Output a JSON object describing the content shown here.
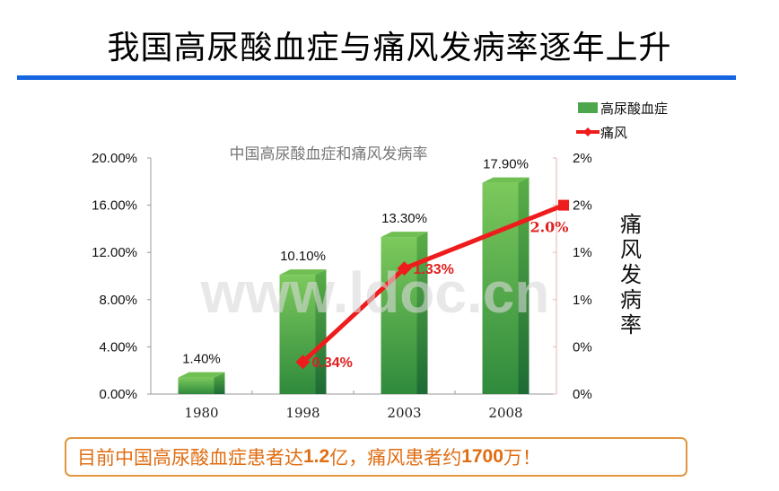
{
  "slide": {
    "title": "我国高尿酸血症与痛风发病率逐年上升",
    "accent_rule_color": "#1565e0",
    "callout": {
      "parts": [
        "目前中国高尿酸血症患者达",
        "1.2",
        "亿，痛风患者约",
        "1700",
        "万！"
      ],
      "border_color": "#e3963f",
      "text_color": "#e06d12"
    },
    "watermark": "www.ldoc.cn"
  },
  "chart_data": {
    "type": "bar+line",
    "title": "中国高尿酸血症和痛风发病率",
    "categories": [
      "1980",
      "1998",
      "2003",
      "2008"
    ],
    "series": [
      {
        "name": "高尿酸血症",
        "type": "bar",
        "axis": "left",
        "color": "#5cb947",
        "values": [
          1.4,
          10.1,
          13.3,
          17.9
        ],
        "labels": [
          "1.40%",
          "10.10%",
          "13.30%",
          "17.90%"
        ]
      },
      {
        "name": "痛风",
        "type": "line",
        "axis": "right",
        "color": "#ee1c1c",
        "values": [
          null,
          0.34,
          1.33,
          2.0
        ],
        "labels": [
          "",
          "0.34%",
          "1.33%",
          "2.0%"
        ]
      }
    ],
    "left_axis": {
      "ticks": [
        "0.00%",
        "4.00%",
        "8.00%",
        "12.00%",
        "16.00%",
        "20.00%"
      ],
      "ylim": [
        0,
        20
      ]
    },
    "right_axis": {
      "label": "痛风发病率",
      "ticks": [
        "0%",
        "0%",
        "1%",
        "1%",
        "2%",
        "2%"
      ],
      "ylim": [
        0,
        2.5
      ]
    },
    "legend": {
      "position": "top-right",
      "entries": [
        "高尿酸血症",
        "痛风"
      ]
    },
    "grid": false
  }
}
